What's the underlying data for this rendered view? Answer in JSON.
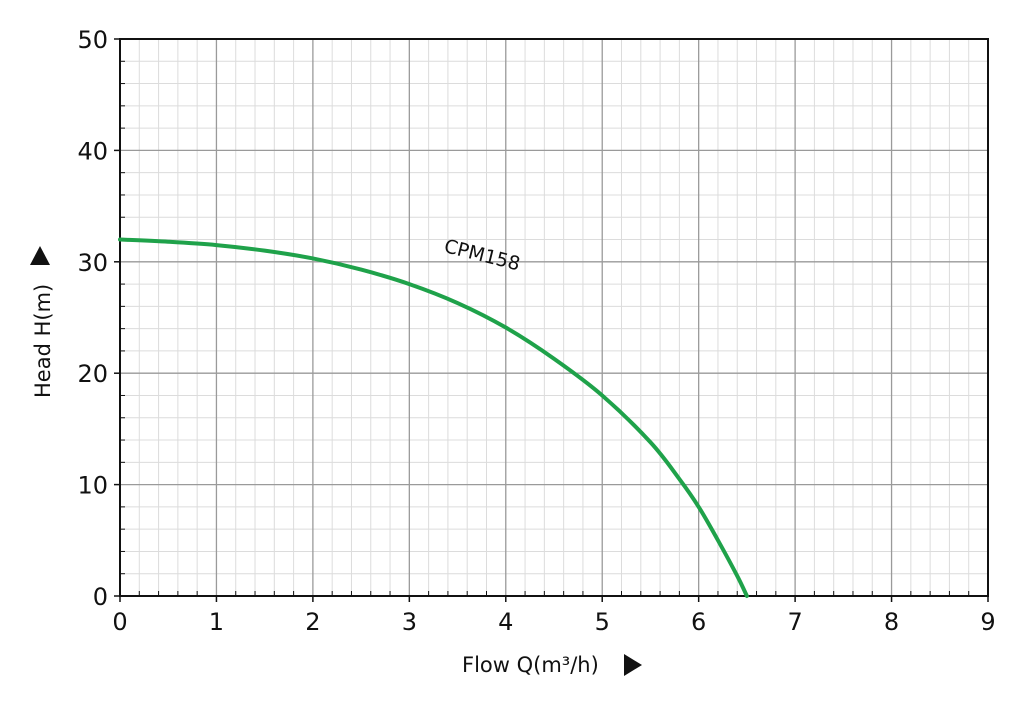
{
  "chart_data": {
    "type": "line",
    "xlabel": "Flow Q(m³/h)",
    "ylabel": "Head H(m)",
    "xlim": [
      0,
      9
    ],
    "ylim": [
      0,
      50
    ],
    "x_ticks": [
      0,
      1,
      2,
      3,
      4,
      5,
      6,
      7,
      8,
      9
    ],
    "y_ticks": [
      0,
      10,
      20,
      30,
      40,
      50
    ],
    "grid": true,
    "series": [
      {
        "name": "CPM158",
        "color": "#1fa24a",
        "points": [
          [
            0,
            32.0
          ],
          [
            0.5,
            31.8
          ],
          [
            1,
            31.5
          ],
          [
            1.5,
            31.0
          ],
          [
            2,
            30.3
          ],
          [
            2.5,
            29.3
          ],
          [
            3,
            28.0
          ],
          [
            3.5,
            26.3
          ],
          [
            4,
            24.1
          ],
          [
            4.5,
            21.3
          ],
          [
            5,
            18.0
          ],
          [
            5.5,
            13.8
          ],
          [
            5.8,
            10.5
          ],
          [
            6,
            8.0
          ],
          [
            6.2,
            5.0
          ],
          [
            6.4,
            1.8
          ],
          [
            6.5,
            0
          ]
        ]
      }
    ]
  }
}
